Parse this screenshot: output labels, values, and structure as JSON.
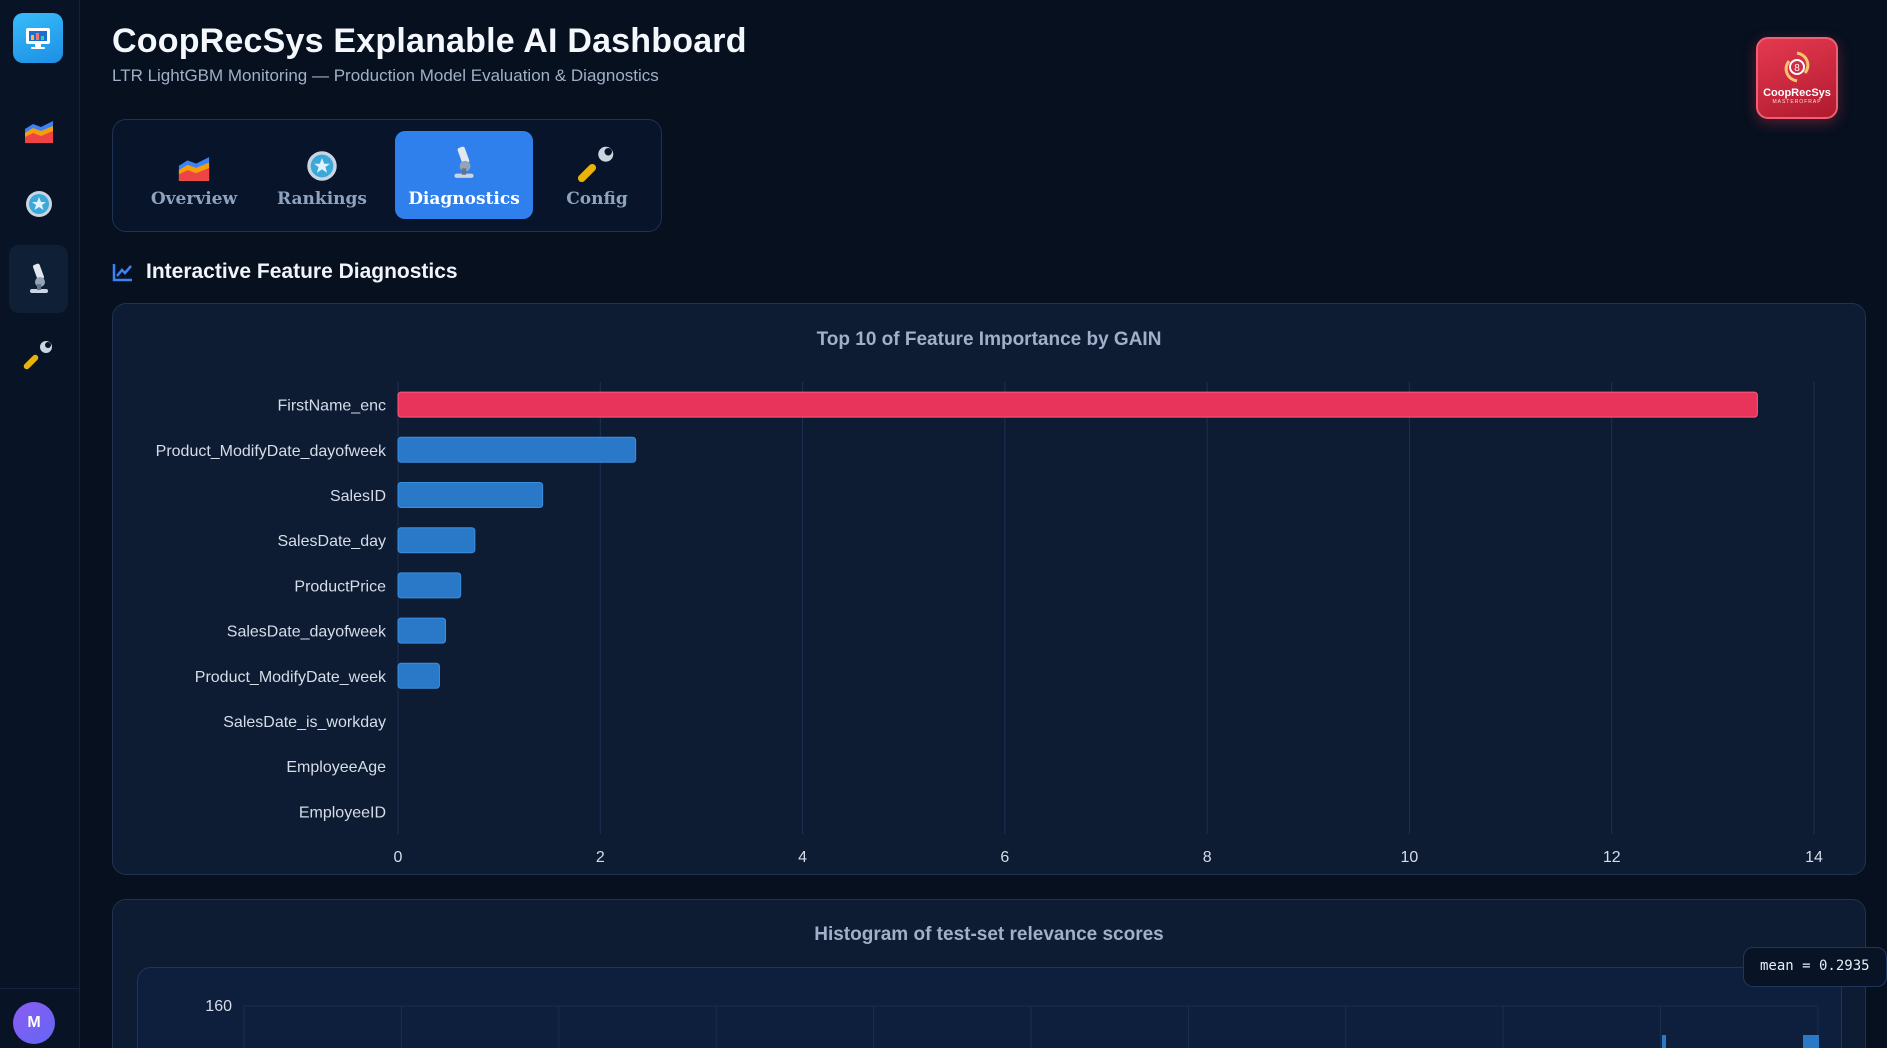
{
  "app": {
    "title": "CoopRecSys Explanable AI Dashboard",
    "subtitle": "LTR LightGBM Monitoring — Production Model Evaluation & Diagnostics",
    "brand": {
      "name": "CoopRecSys",
      "sub": "MASTEROFRAP",
      "color": "#e53950"
    }
  },
  "sidebar": {
    "items": [
      {
        "icon": "chart-icon"
      },
      {
        "icon": "medal-icon"
      },
      {
        "icon": "microscope-icon",
        "active": true
      },
      {
        "icon": "wrench-icon"
      }
    ],
    "avatar": "M"
  },
  "tabs": [
    {
      "label": "Overview",
      "icon": "chart-icon"
    },
    {
      "label": "Rankings",
      "icon": "medal-icon"
    },
    {
      "label": "Diagnostics",
      "icon": "microscope-icon",
      "active": true
    },
    {
      "label": "Config",
      "icon": "wrench-icon"
    }
  ],
  "section": {
    "title": "Interactive Feature Diagnostics",
    "icon": "line-chart-icon"
  },
  "chart_data": [
    {
      "type": "bar",
      "orientation": "horizontal",
      "title": "Top 10 of Feature Importance by GAIN",
      "categories": [
        "FirstName_enc",
        "Product_ModifyDate_dayofweek",
        "SalesID",
        "SalesDate_day",
        "ProductPrice",
        "SalesDate_dayofweek",
        "Product_ModifyDate_week",
        "SalesDate_is_workday",
        "EmployeeAge",
        "EmployeeID"
      ],
      "values": [
        13.44,
        2.35,
        1.43,
        0.76,
        0.62,
        0.47,
        0.41,
        0,
        0,
        0
      ],
      "xlim": [
        0,
        14
      ],
      "xticks": [
        0,
        2,
        4,
        6,
        8,
        10,
        12,
        14
      ],
      "colors": {
        "top": "#e8345a",
        "rest": "#2a78c8"
      },
      "grid": true
    },
    {
      "type": "histogram",
      "title": "Histogram of test-set relevance scores",
      "yticks": [
        160
      ],
      "annotation": "mean = 0.2935"
    }
  ]
}
